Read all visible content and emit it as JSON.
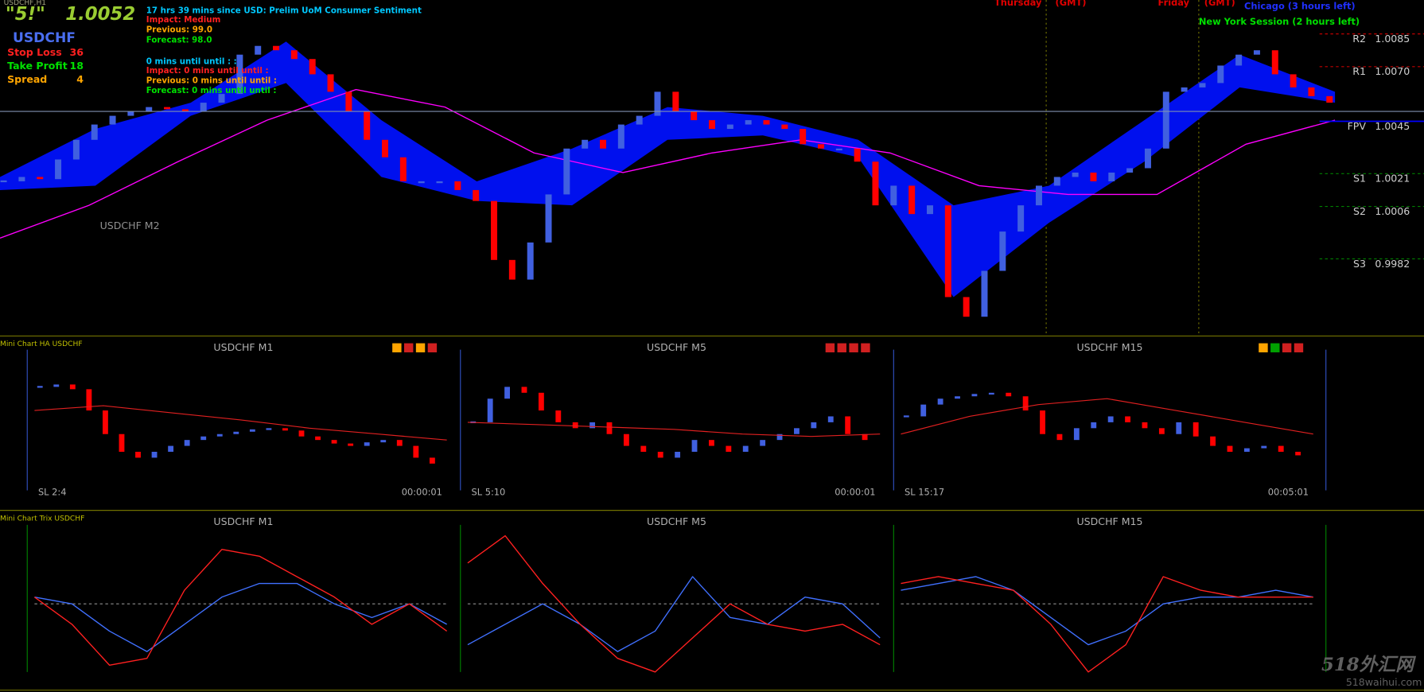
{
  "header": {
    "chart_id": "USDCHF,H1",
    "signal": "\"5!\"",
    "price": {
      "value": 1.0052,
      "label": "1.0052"
    },
    "symbol": "USDCHF",
    "stats": [
      {
        "label": "Stop Loss",
        "value": 36,
        "color": "#ff2020"
      },
      {
        "label": "Take Profit",
        "value": 18,
        "color": "#00e000"
      },
      {
        "label": "Spread",
        "value": 4,
        "color": "#ffa500"
      }
    ]
  },
  "news": [
    {
      "text": "17 hrs 39 mins since USD: Prelim UoM Consumer Sentiment",
      "color": "#00c8ff"
    },
    {
      "text": "Impact: Medium",
      "color": "#ff2020"
    },
    {
      "text": "Previous: 99.0",
      "color": "#ffa500"
    },
    {
      "text": "Forecast: 98.0",
      "color": "#00e000"
    },
    {
      "text": "0 mins until until : :",
      "color": "#00c8ff"
    },
    {
      "text": "Impact: 0 mins until until :",
      "color": "#ff2020"
    },
    {
      "text": "Previous: 0 mins until until :",
      "color": "#ffa500"
    },
    {
      "text": "Forecast: 0 mins until until :",
      "color": "#00e000"
    }
  ],
  "sessions": [
    {
      "text": "Thursday",
      "color": "#e00000"
    },
    {
      "text": "(GMT)",
      "color": "#e00000"
    },
    {
      "text": "Friday",
      "color": "#e00000"
    },
    {
      "text": "(GMT)",
      "color": "#e00000"
    },
    {
      "text": "Chicago (3 hours left)",
      "color": "#2030ff"
    },
    {
      "text": "New York Session (2 hours left)",
      "color": "#00e000"
    }
  ],
  "main_chart": {
    "type": "candlestick",
    "label": "USDCHF M2",
    "ylim": [
      0.995,
      1.0103
    ],
    "up_color": "#4060e0",
    "down_color": "#ff0000",
    "closes": [
      1.002,
      1.0022,
      1.0021,
      1.003,
      1.0039,
      1.0046,
      1.005,
      1.0052,
      1.0054,
      1.0053,
      1.0052,
      1.0056,
      1.006,
      1.0078,
      1.0082,
      1.008,
      1.0076,
      1.0069,
      1.0061,
      1.0052,
      1.0039,
      1.0031,
      1.002,
      1.002,
      1.002,
      1.0016,
      1.0011,
      0.9984,
      0.9975,
      0.9992,
      1.0014,
      1.0035,
      1.0039,
      1.0035,
      1.0046,
      1.005,
      1.0061,
      1.0052,
      1.0048,
      1.0044,
      1.0046,
      1.0048,
      1.0046,
      1.0044,
      1.0037,
      1.0035,
      1.0035,
      1.0029,
      1.0009,
      1.0018,
      1.0005,
      1.0009,
      0.9967,
      0.9958,
      0.9979,
      0.9997,
      1.0009,
      1.0018,
      1.0022,
      1.0024,
      1.002,
      1.0024,
      1.0026,
      1.0035,
      1.0061,
      1.0063,
      1.0065,
      1.0073,
      1.0078,
      1.008,
      1.0069,
      1.0063,
      1.0059,
      1.0056
    ],
    "cloud_color": "#0010ee",
    "cloud_upper": [
      1.0022,
      1.0044,
      1.0056,
      1.0084,
      1.0048,
      1.002,
      1.0035,
      1.0054,
      1.005,
      1.0039,
      1.0009,
      1.0018,
      1.0048,
      1.0078,
      1.0061
    ],
    "cloud_lower": [
      1.0016,
      1.0018,
      1.005,
      1.0065,
      1.0022,
      1.0011,
      1.0009,
      1.0039,
      1.0041,
      1.0031,
      0.9967,
      1.0001,
      1.0029,
      1.0063,
      1.0056
    ],
    "ma_color": "#ff00ff",
    "ma": [
      0.9994,
      1.0009,
      1.0029,
      1.0048,
      1.0062,
      1.0054,
      1.0033,
      1.0024,
      1.0033,
      1.0039,
      1.0033,
      1.0018,
      1.0014,
      1.0014,
      1.0037,
      1.0048
    ],
    "pivots": [
      {
        "name": "R2",
        "value": 1.0085,
        "label": "1.0085",
        "color": "#c00000"
      },
      {
        "name": "R1",
        "value": 1.007,
        "label": "1.0070",
        "color": "#c00000"
      },
      {
        "name": "FPV",
        "value": 1.0045,
        "label": "1.0045",
        "color": "#0000ff"
      },
      {
        "name": "S1",
        "value": 1.0021,
        "label": "1.0021",
        "color": "#008000"
      },
      {
        "name": "S2",
        "value": 1.0006,
        "label": "1.0006",
        "color": "#008000"
      },
      {
        "name": "S3",
        "value": 0.9982,
        "label": "0.9982",
        "color": "#008000"
      }
    ]
  },
  "ha_panels": {
    "title": "Mini Chart HA USDCHF",
    "up_color": "#4060e0",
    "down_color": "#ff0000",
    "ma_color": "#e02020",
    "panels": [
      {
        "name": "USDCHF M1",
        "footer_left": "SL 2:4",
        "footer_right": "00:00:01",
        "ylim": [
          0,
          100
        ],
        "closes": [
          80,
          82,
          78,
          60,
          40,
          25,
          20,
          25,
          30,
          35,
          38,
          40,
          42,
          44,
          45,
          43,
          38,
          35,
          32,
          30,
          33,
          35,
          30,
          20,
          15
        ],
        "ma": [
          60,
          64,
          58,
          52,
          45,
          40,
          35
        ]
      },
      {
        "name": "USDCHF M5",
        "footer_left": "SL 5:10",
        "footer_right": "00:00:01",
        "ylim": [
          0,
          100
        ],
        "closes": [
          50,
          70,
          80,
          75,
          60,
          50,
          45,
          50,
          40,
          30,
          25,
          20,
          25,
          35,
          30,
          25,
          30,
          35,
          40,
          45,
          50,
          55,
          40,
          35
        ],
        "ma": [
          50,
          48,
          46,
          44,
          40,
          38,
          40
        ]
      },
      {
        "name": "USDCHF M15",
        "footer_left": "SL 15:17",
        "footer_right": "00:05:01",
        "ylim": [
          0,
          100
        ],
        "closes": [
          55,
          65,
          70,
          72,
          74,
          75,
          72,
          60,
          40,
          35,
          45,
          50,
          55,
          50,
          45,
          40,
          50,
          38,
          30,
          25,
          28,
          30,
          25,
          22
        ],
        "ma": [
          40,
          55,
          65,
          70,
          60,
          50,
          40
        ]
      }
    ]
  },
  "trix_panels": {
    "title": "Mini Chart Trix USDCHF",
    "fast_color": "#4070ff",
    "slow_color": "#ff2020",
    "panels": [
      {
        "name": "USDCHF M1",
        "ylim": [
          -1,
          1
        ],
        "fast": [
          0.1,
          0.0,
          -0.4,
          -0.7,
          -0.3,
          0.1,
          0.3,
          0.3,
          0.0,
          -0.2,
          0.0,
          -0.3
        ],
        "slow": [
          0.1,
          -0.3,
          -0.9,
          -0.8,
          0.2,
          0.8,
          0.7,
          0.4,
          0.1,
          -0.3,
          0.0,
          -0.4
        ]
      },
      {
        "name": "USDCHF M5",
        "ylim": [
          -1,
          1
        ],
        "fast": [
          -0.6,
          -0.3,
          0.0,
          -0.3,
          -0.7,
          -0.4,
          0.4,
          -0.2,
          -0.3,
          0.1,
          0.0,
          -0.5
        ],
        "slow": [
          0.6,
          1.0,
          0.3,
          -0.3,
          -0.8,
          -1.0,
          -0.5,
          0.0,
          -0.3,
          -0.4,
          -0.3,
          -0.6
        ]
      },
      {
        "name": "USDCHF M15",
        "ylim": [
          -1,
          1
        ],
        "fast": [
          0.2,
          0.3,
          0.4,
          0.2,
          -0.2,
          -0.6,
          -0.4,
          0.0,
          0.1,
          0.1,
          0.2,
          0.1
        ],
        "slow": [
          0.3,
          0.4,
          0.3,
          0.2,
          -0.3,
          -1.0,
          -0.6,
          0.4,
          0.2,
          0.1,
          0.1,
          0.1
        ]
      }
    ]
  },
  "watermark": {
    "title": "518外汇网",
    "url": "518waihui.com"
  }
}
